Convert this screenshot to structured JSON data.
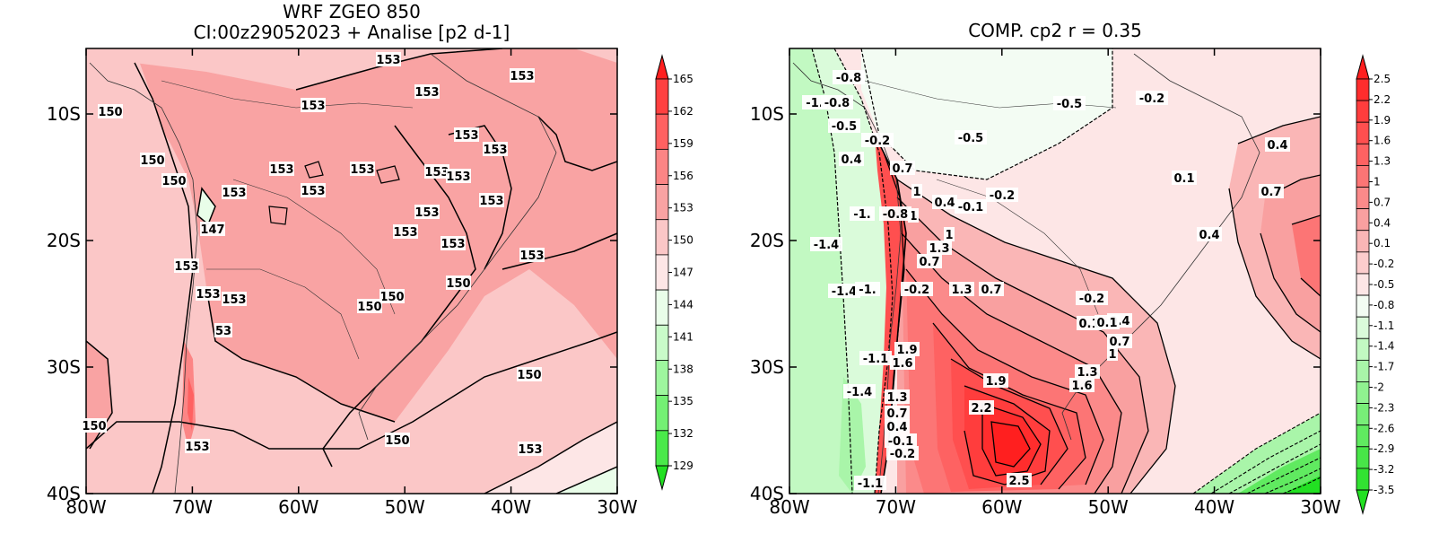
{
  "panels": [
    {
      "title_line1": "WRF ZGEO 850",
      "title_line2": "CI:00z29052023 + Analise  [p2 d-1]",
      "x_ticks": [
        "80W",
        "70W",
        "60W",
        "50W",
        "40W",
        "30W"
      ],
      "y_ticks": [
        "10S",
        "20S",
        "30S",
        "40S"
      ],
      "colorbar": {
        "labels": [
          "165",
          "162",
          "159",
          "156",
          "153",
          "150",
          "147",
          "144",
          "141",
          "138",
          "135",
          "132",
          "129"
        ],
        "colors": [
          "#ff1f1f",
          "#ff4040",
          "#ff6161",
          "#fc8585",
          "#f9a3a3",
          "#fbc7c7",
          "#fde6e6",
          "#e9fde9",
          "#c9fbc9",
          "#9ef69e",
          "#74f074",
          "#4ae94a",
          "#22e022"
        ]
      },
      "contour_labels": [
        "153",
        "153",
        "153",
        "153",
        "153",
        "153",
        "153",
        "153",
        "153",
        "153",
        "153",
        "153",
        "153",
        "153",
        "153",
        "153",
        "150",
        "150",
        "150",
        "150",
        "150",
        "150",
        "147",
        "153",
        "153",
        "153",
        "153",
        "53",
        "150",
        "150",
        "153",
        "150",
        "153"
      ]
    },
    {
      "title_line1": "COMP. cp2  r =  0.35",
      "x_ticks": [
        "80W",
        "70W",
        "60W",
        "50W",
        "40W",
        "30W"
      ],
      "y_ticks": [
        "10S",
        "20S",
        "30S",
        "40S"
      ],
      "colorbar": {
        "labels": [
          "2.5",
          "2.2",
          "1.9",
          "1.6",
          "1.3",
          "1",
          "0.7",
          "0.4",
          "0.1",
          "-0.2",
          "-0.5",
          "-0.8",
          "-1.1",
          "-1.4",
          "-1.7",
          "-2",
          "-2.3",
          "-2.6",
          "-2.9",
          "-3.2",
          "-3.5"
        ],
        "colors": [
          "#ff1f1f",
          "#ff2d2d",
          "#ff3d3d",
          "#ff4f4f",
          "#fe6262",
          "#fc7575",
          "#fb8a8a",
          "#f9a0a0",
          "#fab6b6",
          "#fccdcd",
          "#fde6e6",
          "#f3fcf3",
          "#dafbda",
          "#c2f9c2",
          "#a9f5a9",
          "#90f290",
          "#78ee78",
          "#60ea60",
          "#48e648",
          "#32e232",
          "#22e022"
        ]
      },
      "contour_labels": [
        "-0.8",
        "-1.",
        "-0.8",
        "-0.5",
        "-0.2",
        "0.4",
        "1",
        "0.7",
        "1",
        "0.4",
        "-0.1",
        "-0.2",
        "-1.",
        "-0.8",
        "-1.4",
        "1",
        "1.3",
        "0.7",
        "-1.4",
        "-1.",
        "-0.2",
        "1.3",
        "0.7",
        "-1.1",
        "1.9",
        "1.6",
        "-1.4",
        "1.3",
        "0.7",
        "0.4",
        "-0.1",
        "-0.2",
        "-1.1",
        "1.9",
        "2.2",
        "2.5",
        "-0.5",
        "-0.5",
        "-0.2",
        "0.1",
        "-0.2",
        "0.1",
        "0.4",
        "0.7",
        "1",
        "1.3",
        "1.6",
        "0.1",
        "0.7",
        "0.4",
        "0.4"
      ]
    }
  ]
}
